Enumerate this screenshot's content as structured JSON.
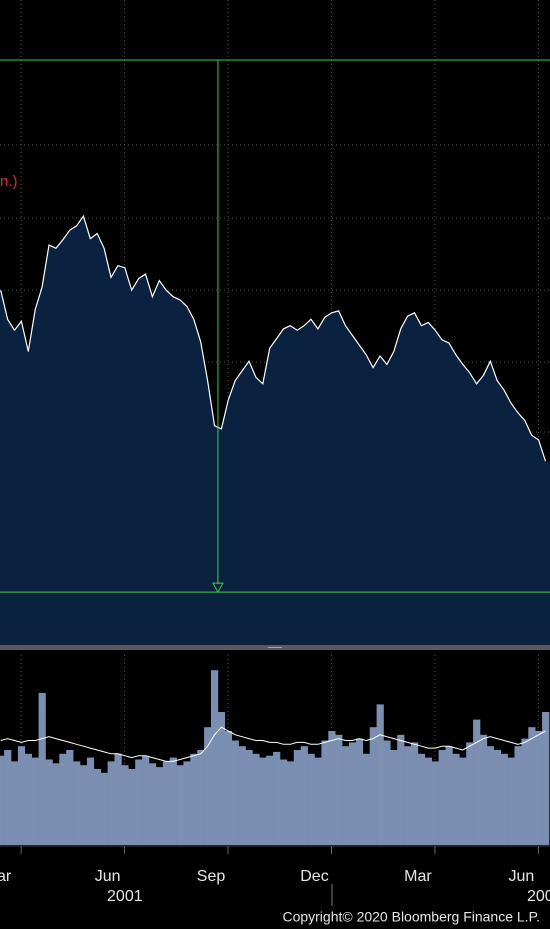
{
  "chart_data": [
    {
      "type": "area",
      "legend_text": "n.)",
      "legend_color": "#e0263a",
      "color": "#ffffff",
      "fill": "#0a2140",
      "xlim": [
        -0.12,
        15.83
      ],
      "ylim": [
        0,
        100
      ],
      "grid": true,
      "xticks": [
        0,
        3,
        6,
        9,
        12,
        15
      ],
      "x": [
        -0.1,
        0.1,
        0.3,
        0.5,
        0.7,
        0.9,
        1.1,
        1.3,
        1.5,
        1.7,
        1.9,
        2.1,
        2.3,
        2.5,
        2.7,
        2.9,
        3.1,
        3.3,
        3.5,
        3.7,
        3.9,
        4.1,
        4.3,
        4.5,
        4.7,
        4.9,
        5.1,
        5.3,
        5.5,
        5.7,
        5.9,
        6.1,
        6.3,
        6.5,
        6.7,
        6.9,
        7.1,
        7.3,
        7.5,
        7.7,
        7.9,
        8.1,
        8.3,
        8.5,
        8.7,
        8.9,
        9.1,
        9.3,
        9.5,
        9.7,
        9.9,
        10.1,
        10.3,
        10.5,
        10.7,
        10.9,
        11.1,
        11.3,
        11.5,
        11.7,
        11.9,
        12.1,
        12.3,
        12.5,
        12.7,
        12.9,
        13.1,
        13.3,
        13.5,
        13.7,
        13.9,
        14.1,
        14.3,
        14.5,
        14.7,
        14.9,
        15.1,
        15.3,
        15.5,
        15.7
      ],
      "values": [
        55.0,
        50.5,
        48.8,
        50.2,
        45.5,
        52.0,
        55.5,
        62.0,
        61.5,
        62.8,
        64.3,
        65.0,
        66.5,
        63.0,
        63.8,
        61.5,
        57.0,
        58.8,
        58.5,
        55.0,
        56.8,
        57.5,
        54.0,
        56.5,
        55.0,
        54.0,
        53.5,
        52.5,
        50.5,
        47.0,
        41.0,
        34.0,
        33.5,
        38.0,
        41.0,
        42.5,
        44.0,
        41.5,
        40.5,
        46.0,
        47.5,
        49.0,
        49.5,
        48.8,
        49.5,
        50.5,
        49.0,
        50.8,
        51.5,
        51.8,
        49.5,
        48.0,
        46.5,
        45.0,
        43.0,
        44.8,
        43.5,
        45.5,
        49.0,
        51.0,
        51.5,
        49.5,
        50.0,
        48.8,
        47.3,
        46.8,
        45.0,
        43.5,
        42.2,
        40.5,
        41.8,
        44.0,
        41.0,
        39.5,
        37.5,
        36.0,
        34.8,
        32.5,
        31.8,
        28.5
      ],
      "reference_lines": {
        "y": [
          90.7,
          8.2
        ],
        "x": 6.2,
        "color": "#3ccc3c"
      }
    },
    {
      "type": "bar",
      "color": "#7b8fb2",
      "average_color": "#ffffff",
      "xlim": [
        -0.12,
        15.83
      ],
      "ylim": [
        0,
        100
      ],
      "grid": true,
      "xticks": [
        {
          "value": 0,
          "label": "ar"
        },
        {
          "value": 3,
          "label": "Jun"
        },
        {
          "value": 6,
          "label": "Sep"
        },
        {
          "value": 9,
          "label": "Dec"
        },
        {
          "value": 12,
          "label": "Mar"
        },
        {
          "value": 15,
          "label": "Jun"
        }
      ],
      "year_labels": [
        {
          "value": 3.5,
          "label": "2001"
        },
        {
          "value": 15.55,
          "label": "200"
        }
      ],
      "x": [
        -0.1,
        0.1,
        0.3,
        0.5,
        0.7,
        0.9,
        1.1,
        1.3,
        1.5,
        1.7,
        1.9,
        2.1,
        2.3,
        2.5,
        2.7,
        2.9,
        3.1,
        3.3,
        3.5,
        3.7,
        3.9,
        4.1,
        4.3,
        4.5,
        4.7,
        4.9,
        5.1,
        5.3,
        5.5,
        5.7,
        5.9,
        6.1,
        6.3,
        6.5,
        6.7,
        6.9,
        7.1,
        7.3,
        7.5,
        7.7,
        7.9,
        8.1,
        8.3,
        8.5,
        8.7,
        8.9,
        9.1,
        9.3,
        9.5,
        9.7,
        9.9,
        10.1,
        10.3,
        10.5,
        10.7,
        10.9,
        11.1,
        11.3,
        11.5,
        11.7,
        11.9,
        12.1,
        12.3,
        12.5,
        12.7,
        12.9,
        13.1,
        13.3,
        13.5,
        13.7,
        13.9,
        14.1,
        14.3,
        14.5,
        14.7,
        14.9,
        15.1,
        15.3,
        15.5,
        15.7
      ],
      "values": [
        47,
        50,
        44,
        52,
        48,
        46,
        80,
        45,
        43,
        48,
        50,
        44,
        42,
        46,
        40,
        38,
        44,
        48,
        42,
        40,
        45,
        47,
        43,
        41,
        44,
        46,
        42,
        44,
        48,
        50,
        62,
        92,
        70,
        60,
        55,
        52,
        50,
        48,
        46,
        47,
        49,
        45,
        44,
        50,
        52,
        48,
        46,
        55,
        60,
        58,
        52,
        54,
        56,
        48,
        62,
        74,
        55,
        50,
        58,
        52,
        54,
        48,
        46,
        44,
        50,
        52,
        48,
        46,
        54,
        66,
        58,
        52,
        50,
        48,
        46,
        52,
        56,
        62,
        60,
        70
      ],
      "average_values": [
        55,
        56,
        55,
        54,
        55,
        55,
        56,
        57,
        56,
        55,
        54,
        53,
        52,
        51,
        50,
        49,
        48,
        48,
        47,
        46,
        47,
        47,
        46,
        45,
        44,
        44,
        45,
        46,
        47,
        48,
        52,
        58,
        62,
        60,
        58,
        57,
        56,
        55,
        55,
        54,
        54,
        53,
        53,
        54,
        54,
        53,
        53,
        54,
        55,
        56,
        55,
        55,
        56,
        55,
        56,
        58,
        57,
        56,
        55,
        54,
        53,
        52,
        51,
        51,
        52,
        52,
        51,
        50,
        52,
        54,
        56,
        57,
        56,
        55,
        54,
        53,
        54,
        56,
        58,
        60
      ]
    }
  ],
  "footer": "Copyright© 2020 Bloomberg Finance L.P."
}
